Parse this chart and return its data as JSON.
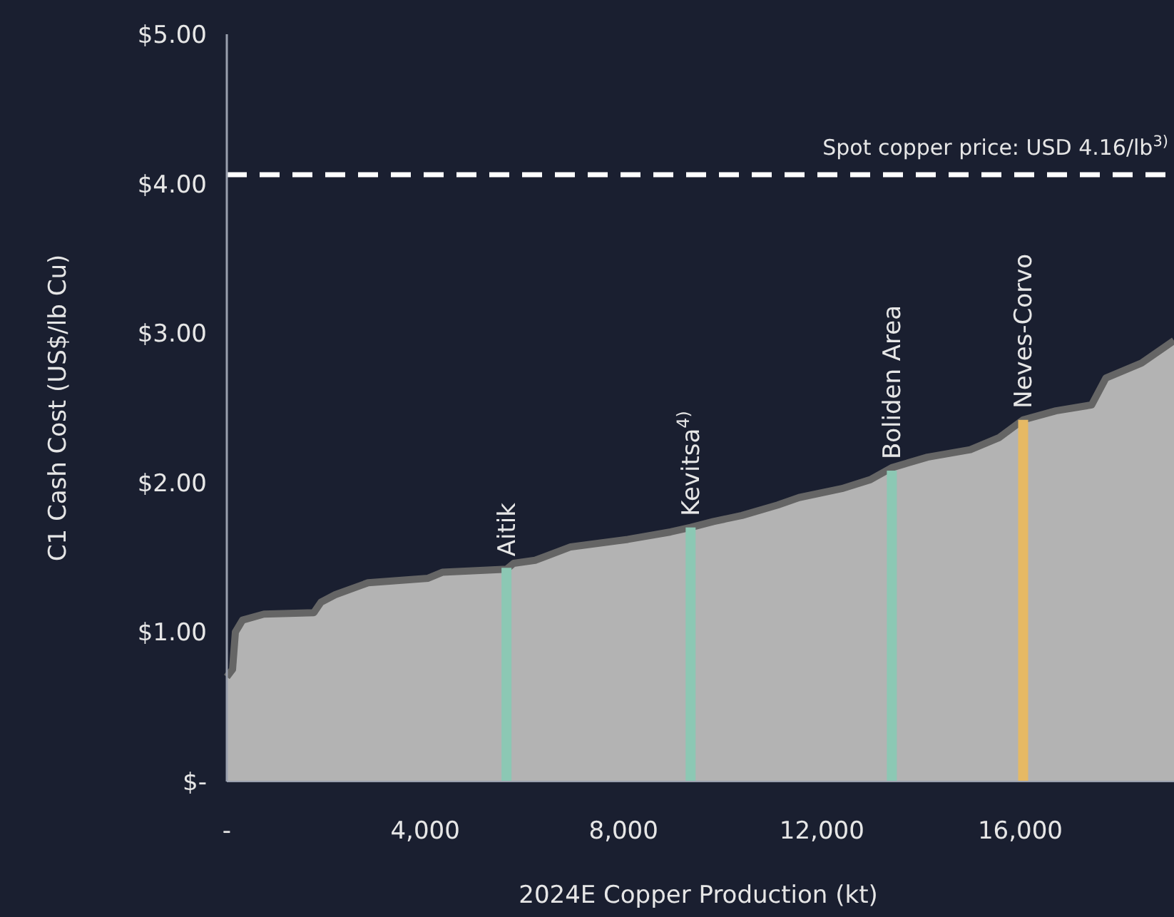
{
  "chart_data": {
    "type": "area",
    "xlabel": "2024E Copper Production (kt)",
    "ylabel": "C1 Cash Cost (US$/lb Cu)",
    "xlim": [
      0,
      19100
    ],
    "xticks": [
      {
        "value": 0,
        "label": "-"
      },
      {
        "value": 4000,
        "label": "4,000"
      },
      {
        "value": 8000,
        "label": "8,000"
      },
      {
        "value": 12000,
        "label": "12,000"
      },
      {
        "value": 16000,
        "label": "16,000"
      }
    ],
    "ylim": [
      0,
      5
    ],
    "yticks": [
      {
        "value": 0,
        "label": "$-"
      },
      {
        "value": 1,
        "label": "$1.00"
      },
      {
        "value": 2,
        "label": "$2.00"
      },
      {
        "value": 3,
        "label": "$3.00"
      },
      {
        "value": 4,
        "label": "$4.00"
      },
      {
        "value": 5,
        "label": "$5.00"
      }
    ],
    "series": [
      {
        "color": "#b3b3b3",
        "x": [
          0,
          115,
          173,
          317,
          748,
          1755,
          1899,
          2187,
          2849,
          4058,
          4345,
          5640,
          5784,
          6216,
          6935,
          8086,
          8950,
          9353,
          9813,
          10388,
          11108,
          11540,
          12403,
          12978,
          13410,
          14129,
          14993,
          15568,
          16058,
          16719,
          17439,
          17727,
          18446,
          19100
        ],
        "values": [
          0.7,
          0.75,
          1.0,
          1.08,
          1.12,
          1.13,
          1.2,
          1.25,
          1.33,
          1.36,
          1.4,
          1.42,
          1.46,
          1.48,
          1.57,
          1.62,
          1.67,
          1.7,
          1.74,
          1.78,
          1.85,
          1.9,
          1.96,
          2.02,
          2.1,
          2.17,
          2.22,
          2.3,
          2.42,
          2.48,
          2.52,
          2.7,
          2.8,
          2.95
        ]
      },
      {
        "type": "bar",
        "x": [
          5640,
          9353,
          13410,
          16058
        ],
        "values": [
          1.43,
          1.7,
          2.08,
          2.42
        ],
        "colors": [
          "#8cc8b4",
          "#8cc8b4",
          "#8cc8b4",
          "#e6b964"
        ]
      }
    ],
    "ref_lines": [
      {
        "axis": "y",
        "value": 4.06,
        "label": "Spot copper price: USD 4.16/lb$^{3)}$",
        "color": "#ffffff",
        "line_style": "dashed"
      }
    ],
    "annotations": [
      {
        "text": "Aitik",
        "x": 5640,
        "y": 1.43
      },
      {
        "text": "Kevitsa$^{4)}$",
        "x": 9353,
        "y": 1.7
      },
      {
        "text": "Boliden Area",
        "x": 13410,
        "y": 2.08
      },
      {
        "text": "Neves-Corvo",
        "x": 16058,
        "y": 2.42
      }
    ]
  }
}
